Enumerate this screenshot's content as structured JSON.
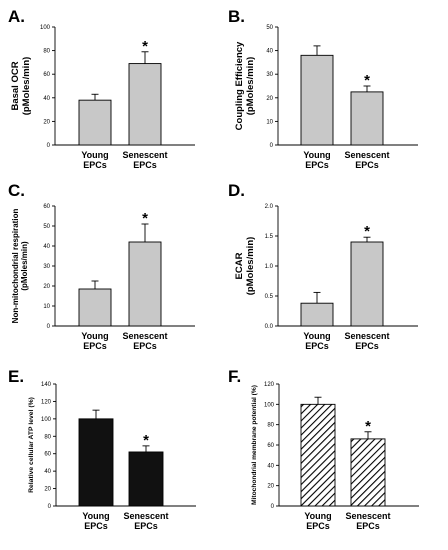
{
  "chart_data": [
    {
      "panel": "A.",
      "type": "bar",
      "categories": [
        [
          "Young",
          "EPCs"
        ],
        [
          "Senescent",
          "EPCs"
        ]
      ],
      "values": [
        38,
        69
      ],
      "errors": [
        5,
        10
      ],
      "significance": [
        "",
        "*"
      ],
      "ylabel": [
        "Basal OCR",
        "(pMoles/min)"
      ],
      "ylim": [
        0,
        100
      ],
      "yticks": [
        0,
        20,
        40,
        60,
        80,
        100
      ],
      "fill": "gray",
      "colors": {
        "bar": "#c8c8c8",
        "edge": "#000000"
      }
    },
    {
      "panel": "B.",
      "type": "bar",
      "categories": [
        [
          "Young",
          "EPCs"
        ],
        [
          "Senescent",
          "EPCs"
        ]
      ],
      "values": [
        38,
        22.5
      ],
      "errors": [
        4,
        2.5
      ],
      "significance": [
        "",
        "*"
      ],
      "ylabel": [
        "Coupling Efficiency",
        "(pMoles/min)"
      ],
      "ylim": [
        0,
        50
      ],
      "yticks": [
        0,
        10,
        20,
        30,
        40,
        50
      ],
      "fill": "gray",
      "colors": {
        "bar": "#c8c8c8",
        "edge": "#000000"
      }
    },
    {
      "panel": "C.",
      "type": "bar",
      "categories": [
        [
          "Young",
          "EPCs"
        ],
        [
          "Senescent",
          "EPCs"
        ]
      ],
      "values": [
        18.5,
        42
      ],
      "errors": [
        4,
        9
      ],
      "significance": [
        "",
        "*"
      ],
      "ylabel": [
        "Non-mitochondrial respiration",
        "(pMoles/min)"
      ],
      "ylim": [
        0,
        60
      ],
      "yticks": [
        0,
        10,
        20,
        30,
        40,
        50,
        60
      ],
      "fill": "gray",
      "colors": {
        "bar": "#c8c8c8",
        "edge": "#000000"
      }
    },
    {
      "panel": "D.",
      "type": "bar",
      "categories": [
        [
          "Young",
          "EPCs"
        ],
        [
          "Senescent",
          "EPCs"
        ]
      ],
      "values": [
        0.38,
        1.4
      ],
      "errors": [
        0.18,
        0.08
      ],
      "significance": [
        "",
        "*"
      ],
      "ylabel": [
        "ECAR",
        "(pMoles/min)"
      ],
      "ylim": [
        0,
        2.0
      ],
      "yticks": [
        "0.0",
        "0.5",
        "1.0",
        "1.5",
        "2.0"
      ],
      "fill": "gray",
      "colors": {
        "bar": "#c8c8c8",
        "edge": "#000000"
      }
    },
    {
      "panel": "E.",
      "type": "bar",
      "categories": [
        [
          "Young",
          "EPCs"
        ],
        [
          "Senescent",
          "EPCs"
        ]
      ],
      "values": [
        100,
        62
      ],
      "errors": [
        10,
        7
      ],
      "significance": [
        "",
        "*"
      ],
      "ylabel": [
        "Relative cellular ATP level (%)"
      ],
      "ylim": [
        0,
        140
      ],
      "yticks": [
        0,
        20,
        40,
        60,
        80,
        100,
        120,
        140
      ],
      "fill": "black",
      "colors": {
        "bar": "#111111",
        "edge": "#000000"
      }
    },
    {
      "panel": "F.",
      "type": "bar",
      "categories": [
        [
          "Young",
          "EPCs"
        ],
        [
          "Senescent",
          "EPCs"
        ]
      ],
      "values": [
        100,
        66
      ],
      "errors": [
        7,
        7
      ],
      "significance": [
        "",
        "*"
      ],
      "ylabel": [
        "Mitochondrial membrane potential (%)"
      ],
      "ylim": [
        0,
        120
      ],
      "yticks": [
        0,
        20,
        40,
        60,
        80,
        100,
        120
      ],
      "fill": "hatched",
      "colors": {
        "bar": "#ffffff",
        "edge": "#000000",
        "hatch": "#000000"
      }
    }
  ]
}
